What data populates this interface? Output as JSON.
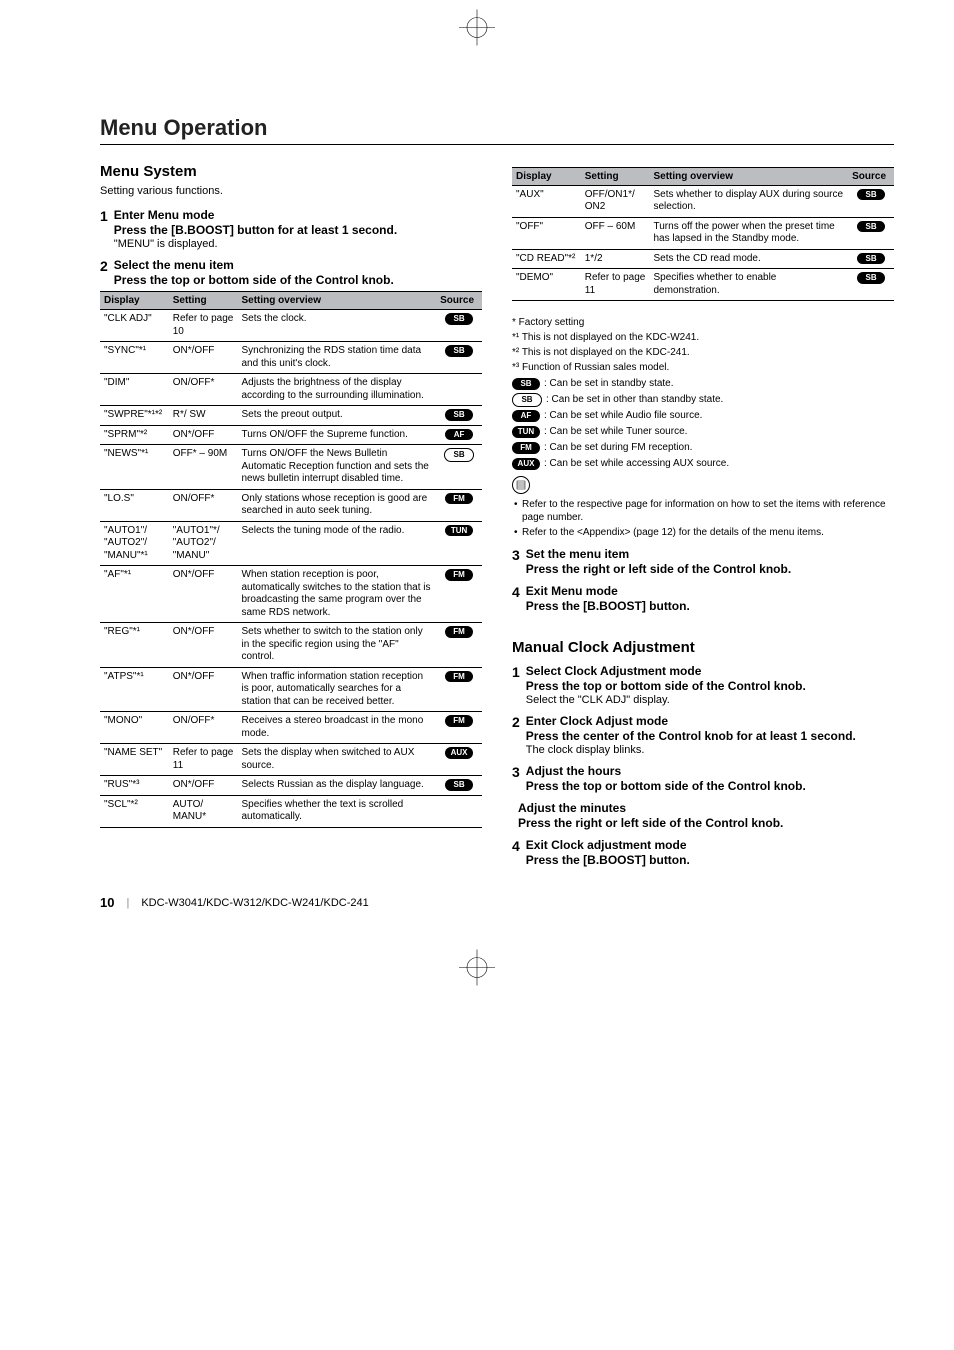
{
  "section_title": "Menu Operation",
  "left": {
    "heading": "Menu System",
    "intro": "Setting various functions.",
    "steps": [
      {
        "num": "1",
        "title": "Enter Menu mode",
        "instr": "Press the [B.BOOST] button for at least 1 second.",
        "note": "\"MENU\" is displayed."
      },
      {
        "num": "2",
        "title": "Select the menu item",
        "instr": "Press the top or bottom side of the Control knob.",
        "note": ""
      }
    ],
    "table": {
      "headers": [
        "Display",
        "Setting",
        "Setting overview",
        "Source"
      ],
      "rows": [
        {
          "display": "\"CLK ADJ\"",
          "setting": "Refer to page 10",
          "overview": "Sets the clock.",
          "source": [
            {
              "t": "SB",
              "s": "solid"
            }
          ]
        },
        {
          "display": "\"SYNC\"*¹",
          "setting": "ON*/OFF",
          "overview": "Synchronizing the RDS station time data and this unit's clock.",
          "source": [
            {
              "t": "SB",
              "s": "solid"
            }
          ]
        },
        {
          "display": "\"DIM\"",
          "setting": "ON/OFF*",
          "overview": "Adjusts the brightness of the display according to the surrounding illumination.",
          "source": []
        },
        {
          "display": "\"SWPRE\"*¹*²",
          "setting": "R*/ SW",
          "overview": "Sets the preout output.",
          "source": [
            {
              "t": "SB",
              "s": "solid"
            }
          ]
        },
        {
          "display": "\"SPRM\"*²",
          "setting": "ON*/OFF",
          "overview": "Turns ON/OFF the Supreme function.",
          "source": [
            {
              "t": "AF",
              "s": "solid"
            }
          ]
        },
        {
          "display": "\"NEWS\"*¹",
          "setting": "OFF* – 90M",
          "overview": "Turns ON/OFF the News Bulletin Automatic Reception function and sets the news bulletin interrupt disabled time.",
          "source": [
            {
              "t": "SB",
              "s": "outline"
            }
          ]
        },
        {
          "display": "\"LO.S\"",
          "setting": "ON/OFF*",
          "overview": "Only stations whose reception is good are searched in auto seek tuning.",
          "source": [
            {
              "t": "FM",
              "s": "solid"
            }
          ]
        },
        {
          "display": "\"AUTO1\"/ \"AUTO2\"/ \"MANU\"*¹",
          "setting": "\"AUTO1\"*/ \"AUTO2\"/ \"MANU\"",
          "overview": "Selects the tuning mode of the radio.",
          "source": [
            {
              "t": "TUN",
              "s": "solid"
            }
          ]
        },
        {
          "display": "\"AF\"*¹",
          "setting": "ON*/OFF",
          "overview": "When station reception is poor, automatically switches to the station that is broadcasting the same program over the same RDS network.",
          "source": [
            {
              "t": "FM",
              "s": "solid"
            }
          ]
        },
        {
          "display": "\"REG\"*¹",
          "setting": "ON*/OFF",
          "overview": "Sets whether to switch to the station only in the specific region using the \"AF\" control.",
          "source": [
            {
              "t": "FM",
              "s": "solid"
            }
          ]
        },
        {
          "display": "\"ATPS\"*¹",
          "setting": "ON*/OFF",
          "overview": "When traffic information station reception is poor, automatically searches for a station that can be received better.",
          "source": [
            {
              "t": "FM",
              "s": "solid"
            }
          ]
        },
        {
          "display": "\"MONO\"",
          "setting": "ON/OFF*",
          "overview": "Receives a stereo broadcast in the mono mode.",
          "source": [
            {
              "t": "FM",
              "s": "solid"
            }
          ]
        },
        {
          "display": "\"NAME SET\"",
          "setting": "Refer to page 11",
          "overview": "Sets the display when switched to AUX source.",
          "source": [
            {
              "t": "AUX",
              "s": "solid"
            }
          ]
        },
        {
          "display": "\"RUS\"*³",
          "setting": "ON*/OFF",
          "overview": "Selects Russian as the display language.",
          "source": [
            {
              "t": "SB",
              "s": "solid"
            }
          ]
        },
        {
          "display": "\"SCL\"*²",
          "setting": "AUTO/ MANU*",
          "overview": "Specifies whether the text is scrolled automatically.",
          "source": []
        }
      ]
    }
  },
  "right": {
    "table": {
      "headers": [
        "Display",
        "Setting",
        "Setting overview",
        "Source"
      ],
      "rows": [
        {
          "display": "\"AUX\"",
          "setting": "OFF/ON1*/ ON2",
          "overview": "Sets whether to display AUX during source selection.",
          "source": [
            {
              "t": "SB",
              "s": "solid"
            }
          ]
        },
        {
          "display": "\"OFF\"",
          "setting": "OFF – 60M",
          "overview": "Turns off the power when the preset time has lapsed in the Standby mode.",
          "source": [
            {
              "t": "SB",
              "s": "solid"
            }
          ]
        },
        {
          "display": "\"CD READ\"*²",
          "setting": "1*/2",
          "overview": "Sets the CD read mode.",
          "source": [
            {
              "t": "SB",
              "s": "solid"
            }
          ]
        },
        {
          "display": "\"DEMO\"",
          "setting": "Refer to page 11",
          "overview": "Specifies whether to enable demonstration.",
          "source": [
            {
              "t": "SB",
              "s": "solid"
            }
          ]
        }
      ]
    },
    "notes": {
      "factory": "* Factory setting",
      "n1": "*¹ This is not displayed on the KDC-W241.",
      "n2": "*² This is not displayed on the KDC-241.",
      "n3": "*³ Function of Russian sales model.",
      "legend": [
        {
          "badge": {
            "t": "SB",
            "s": "solid"
          },
          "text": ": Can be set in standby state."
        },
        {
          "badge": {
            "t": "SB",
            "s": "outline"
          },
          "text": ": Can be set in other than standby state."
        },
        {
          "badge": {
            "t": "AF",
            "s": "solid"
          },
          "text": ": Can be set while Audio file source."
        },
        {
          "badge": {
            "t": "TUN",
            "s": "solid"
          },
          "text": ": Can be set while Tuner source."
        },
        {
          "badge": {
            "t": "FM",
            "s": "solid"
          },
          "text": ": Can be set during FM reception."
        },
        {
          "badge": {
            "t": "AUX",
            "s": "solid"
          },
          "text": ": Can be set while accessing AUX source."
        }
      ],
      "bullets": [
        "Refer to the respective page for information on how to set the items with reference page number.",
        "Refer to the <Appendix> (page 12) for the details of the menu items."
      ]
    },
    "steps_after": [
      {
        "num": "3",
        "title": "Set the menu item",
        "instr": "Press the right or left side of the Control knob.",
        "note": ""
      },
      {
        "num": "4",
        "title": "Exit Menu mode",
        "instr": "Press the [B.BOOST] button.",
        "note": ""
      }
    ],
    "clock": {
      "heading": "Manual Clock Adjustment",
      "steps": [
        {
          "num": "1",
          "title": "Select Clock Adjustment mode",
          "instr": "Press the top or bottom side of the Control knob.",
          "note": "Select the \"CLK ADJ\" display."
        },
        {
          "num": "2",
          "title": "Enter Clock Adjust mode",
          "instr": "Press the center of the Control knob for at least 1 second.",
          "note": "The clock display blinks."
        },
        {
          "num": "3",
          "title": "Adjust the hours",
          "instr": "Press the top or bottom side of the Control knob.",
          "note": ""
        },
        {
          "num": "",
          "title": "Adjust the minutes",
          "instr": "Press the right or left side of the Control knob.",
          "note": ""
        },
        {
          "num": "4",
          "title": "Exit Clock adjustment mode",
          "instr": "Press the [B.BOOST] button.",
          "note": ""
        }
      ]
    }
  },
  "footer": {
    "page": "10",
    "models": "KDC-W3041/KDC-W312/KDC-W241/KDC-241"
  }
}
